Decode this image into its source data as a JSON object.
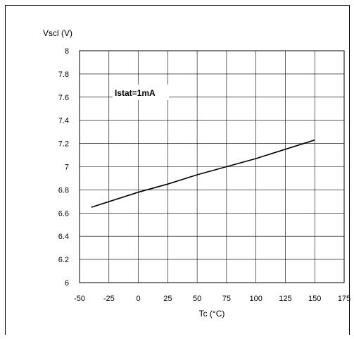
{
  "chart_data": {
    "type": "line",
    "title": "",
    "xlabel": "Tc (°C)",
    "ylabel": "Vscl (V)",
    "annotation": "Istat=1mA",
    "xlim": [
      -50,
      175
    ],
    "ylim": [
      6,
      8
    ],
    "x_ticks": [
      -50,
      -25,
      0,
      25,
      50,
      75,
      100,
      125,
      150,
      175
    ],
    "x_tick_labels": [
      "-50",
      "-25",
      "0",
      "25",
      "50",
      "75",
      "100",
      "125",
      "150",
      "175"
    ],
    "y_ticks": [
      6,
      6.2,
      6.4,
      6.6,
      6.8,
      7,
      7.2,
      7.4,
      7.6,
      7.8,
      8
    ],
    "y_tick_labels": [
      "6",
      "6.2",
      "6.4",
      "6.6",
      "6.8",
      "7",
      "7.2",
      "7.4",
      "7.6",
      "7.8",
      "8"
    ],
    "grid": true,
    "series": [
      {
        "x": [
          -40,
          0,
          25,
          50,
          75,
          100,
          125,
          150
        ],
        "y": [
          6.65,
          6.78,
          6.85,
          6.93,
          7.0,
          7.07,
          7.15,
          7.23
        ],
        "color": "#000000"
      }
    ]
  }
}
